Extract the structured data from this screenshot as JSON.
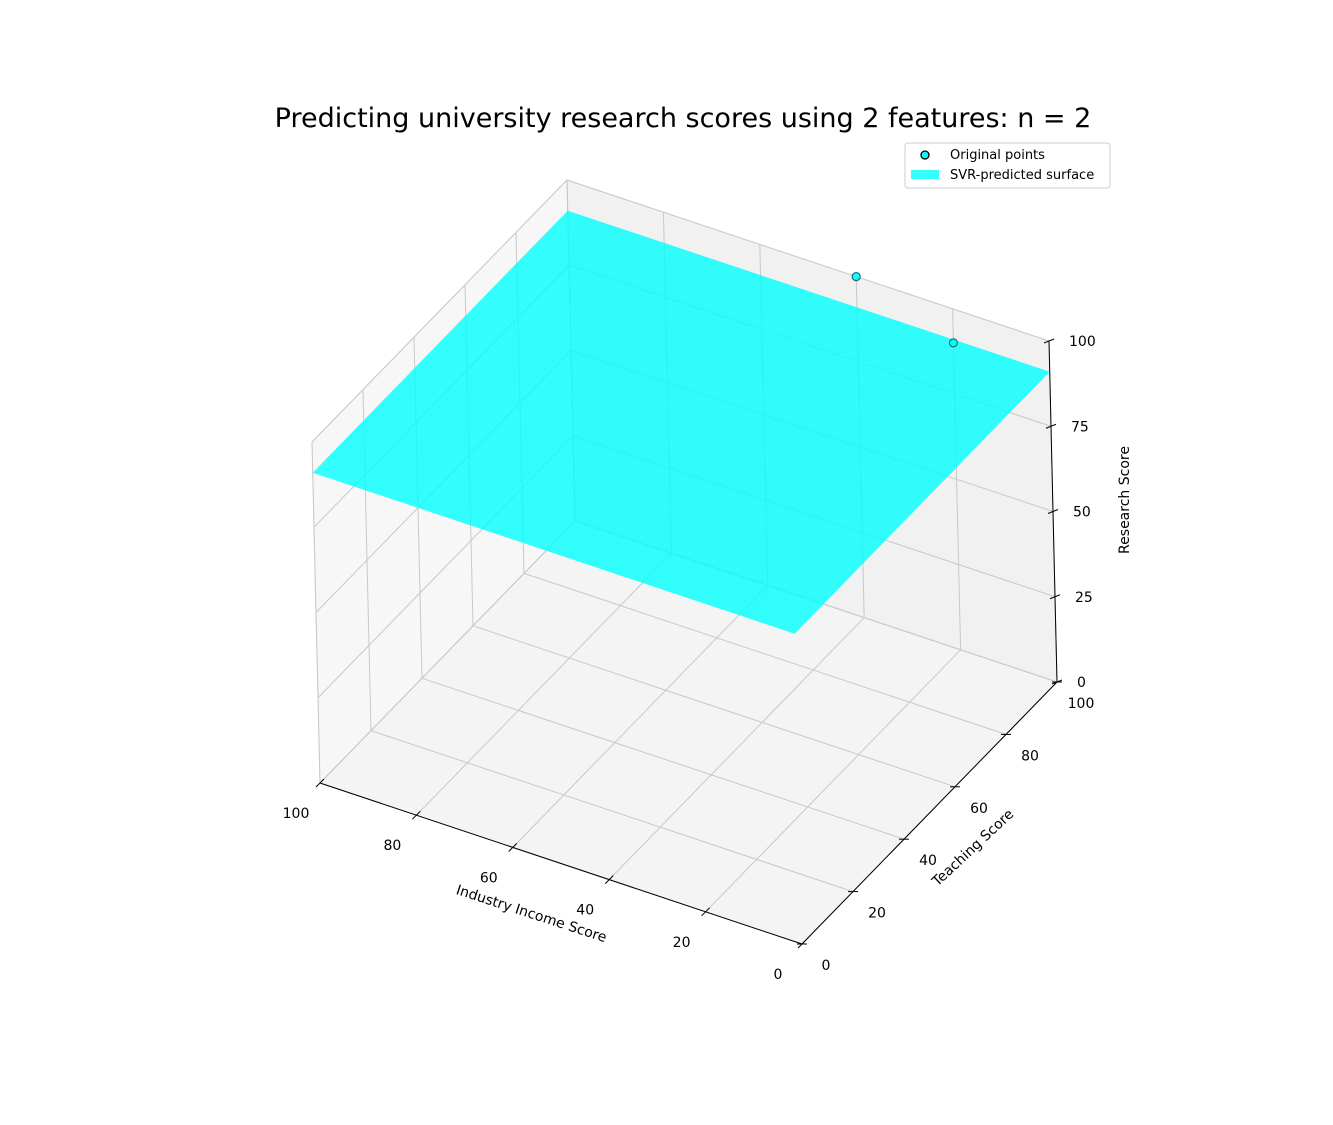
{
  "chart_data": {
    "type": "surface3d",
    "title": "Predicting university research scores using 2 features: n = 2",
    "xlabel": "Industry Income Score",
    "ylabel": "Teaching Score",
    "zlabel": "Research Score",
    "xlim": [
      0,
      100
    ],
    "ylim": [
      0,
      100
    ],
    "zlim": [
      0,
      100
    ],
    "xticks": [
      "100",
      "80",
      "60",
      "40",
      "20",
      "0"
    ],
    "yticks": [
      "0",
      "20",
      "40",
      "60",
      "80",
      "100"
    ],
    "zticks": [
      "0",
      "25",
      "50",
      "75",
      "100"
    ],
    "grid": true,
    "legend": {
      "position": "top-right",
      "entries": [
        {
          "label": "Original points",
          "marker": "circle"
        },
        {
          "label": "SVR-predicted surface",
          "marker": "patch"
        }
      ]
    },
    "colors": {
      "surface": "#00ffff",
      "points": "#00ffff",
      "edges": "#000000"
    },
    "surface": {
      "z_at_x0_y0": 91,
      "z_at_x100_y0": 91,
      "z_at_x0_y100": 91,
      "z_at_x100_y100": 91
    },
    "points": [
      {
        "x": 40,
        "y": 100,
        "z": 100
      },
      {
        "x": 20,
        "y": 100,
        "z": 90
      }
    ]
  }
}
